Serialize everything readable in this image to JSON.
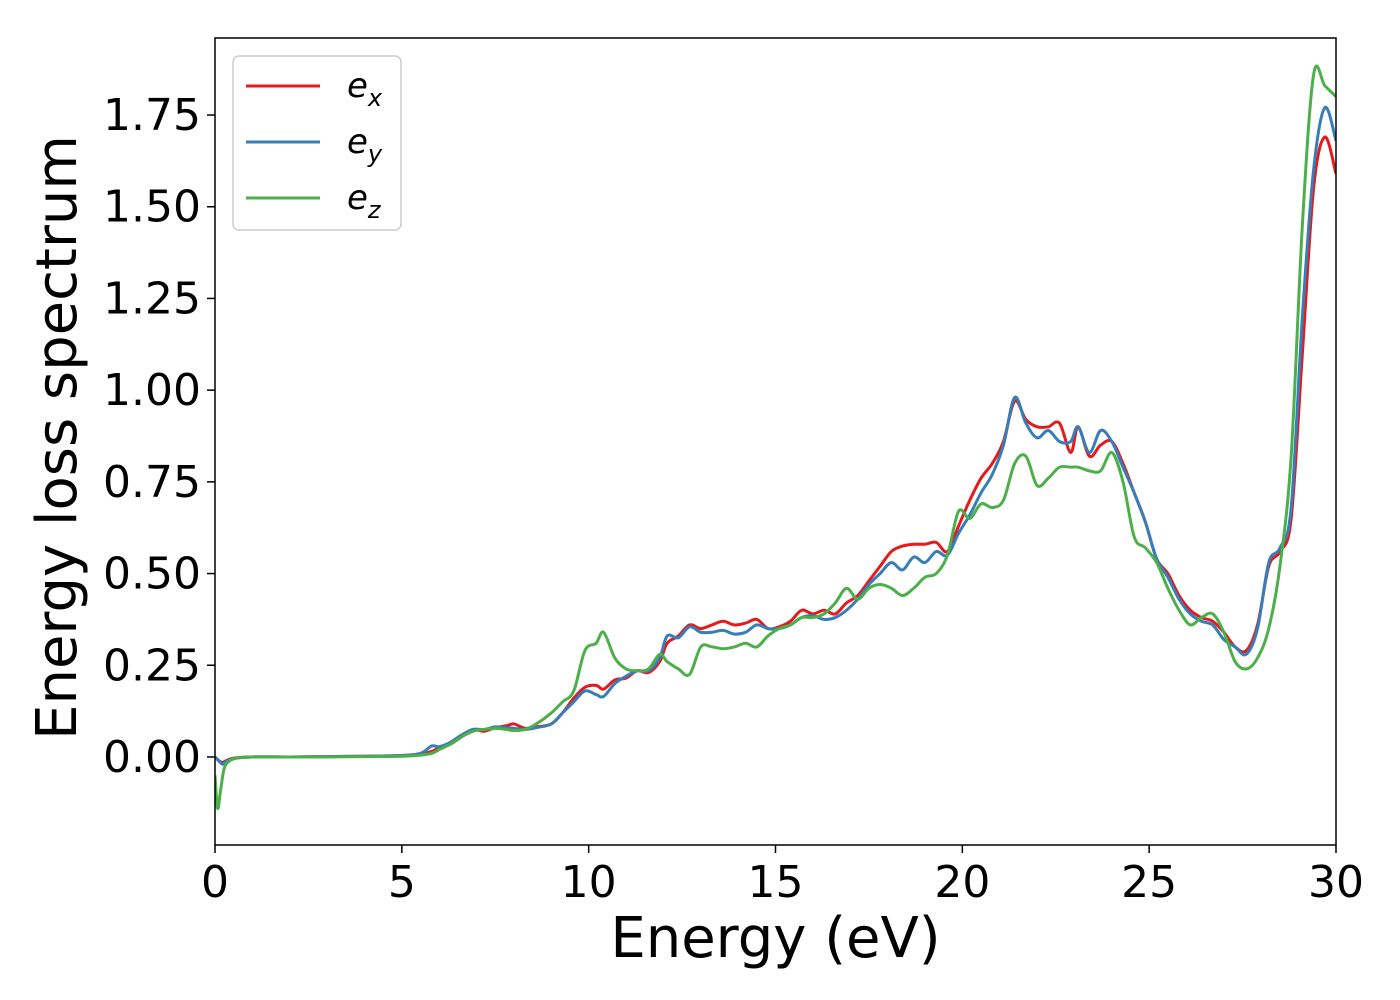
{
  "chart_data": {
    "type": "line",
    "title": "",
    "xlabel": "Energy (eV)",
    "ylabel": "Energy loss spectrum",
    "xlim": [
      0,
      30
    ],
    "ylim": [
      -0.24,
      1.96
    ],
    "xticks": [
      0,
      5,
      10,
      15,
      20,
      25,
      30
    ],
    "xtick_labels": [
      "0",
      "5",
      "10",
      "15",
      "20",
      "25",
      "30"
    ],
    "yticks": [
      0,
      0.25,
      0.5,
      0.75,
      1.0,
      1.25,
      1.5,
      1.75
    ],
    "ytick_labels": [
      "0.00",
      "0.25",
      "0.50",
      "0.75",
      "1.00",
      "1.25",
      "1.50",
      "1.75"
    ],
    "grid": false,
    "legend": {
      "placement": "top-left"
    },
    "series": [
      {
        "name": "e",
        "subscript": "x",
        "color": "#e41a1c",
        "points": [
          [
            0,
            0
          ],
          [
            0.1,
            -0.01
          ],
          [
            0.2,
            -0.015
          ],
          [
            0.3,
            -0.01
          ],
          [
            0.5,
            -0.003
          ],
          [
            1,
            0
          ],
          [
            2,
            0
          ],
          [
            3,
            0.001
          ],
          [
            4,
            0.002
          ],
          [
            5,
            0.004
          ],
          [
            5.5,
            0.008
          ],
          [
            5.8,
            0.015
          ],
          [
            6,
            0.025
          ],
          [
            6.3,
            0.035
          ],
          [
            6.6,
            0.055
          ],
          [
            6.9,
            0.075
          ],
          [
            7.2,
            0.07
          ],
          [
            7.5,
            0.08
          ],
          [
            7.8,
            0.085
          ],
          [
            8,
            0.09
          ],
          [
            8.3,
            0.078
          ],
          [
            8.6,
            0.082
          ],
          [
            9,
            0.09
          ],
          [
            9.3,
            0.12
          ],
          [
            9.6,
            0.16
          ],
          [
            9.9,
            0.19
          ],
          [
            10.2,
            0.195
          ],
          [
            10.4,
            0.185
          ],
          [
            10.7,
            0.21
          ],
          [
            11,
            0.215
          ],
          [
            11.3,
            0.235
          ],
          [
            11.6,
            0.23
          ],
          [
            11.9,
            0.26
          ],
          [
            12.1,
            0.31
          ],
          [
            12.4,
            0.33
          ],
          [
            12.7,
            0.36
          ],
          [
            13,
            0.35
          ],
          [
            13.3,
            0.36
          ],
          [
            13.6,
            0.37
          ],
          [
            13.9,
            0.36
          ],
          [
            14.2,
            0.365
          ],
          [
            14.5,
            0.375
          ],
          [
            14.8,
            0.35
          ],
          [
            15.1,
            0.355
          ],
          [
            15.4,
            0.37
          ],
          [
            15.7,
            0.4
          ],
          [
            16,
            0.39
          ],
          [
            16.3,
            0.4
          ],
          [
            16.6,
            0.39
          ],
          [
            16.9,
            0.42
          ],
          [
            17.2,
            0.44
          ],
          [
            17.5,
            0.48
          ],
          [
            17.8,
            0.52
          ],
          [
            18.1,
            0.56
          ],
          [
            18.4,
            0.575
          ],
          [
            18.7,
            0.58
          ],
          [
            19,
            0.58
          ],
          [
            19.3,
            0.585
          ],
          [
            19.6,
            0.56
          ],
          [
            19.9,
            0.63
          ],
          [
            20.2,
            0.7
          ],
          [
            20.5,
            0.76
          ],
          [
            20.8,
            0.8
          ],
          [
            21.1,
            0.86
          ],
          [
            21.4,
            0.97
          ],
          [
            21.7,
            0.92
          ],
          [
            22,
            0.9
          ],
          [
            22.3,
            0.9
          ],
          [
            22.6,
            0.91
          ],
          [
            22.9,
            0.83
          ],
          [
            23.1,
            0.9
          ],
          [
            23.4,
            0.82
          ],
          [
            23.7,
            0.85
          ],
          [
            24,
            0.86
          ],
          [
            24.3,
            0.8
          ],
          [
            24.6,
            0.72
          ],
          [
            24.9,
            0.64
          ],
          [
            25.2,
            0.54
          ],
          [
            25.5,
            0.5
          ],
          [
            25.8,
            0.44
          ],
          [
            26.1,
            0.4
          ],
          [
            26.4,
            0.38
          ],
          [
            26.7,
            0.37
          ],
          [
            27,
            0.34
          ],
          [
            27.3,
            0.3
          ],
          [
            27.6,
            0.29
          ],
          [
            27.9,
            0.36
          ],
          [
            28.2,
            0.52
          ],
          [
            28.5,
            0.56
          ],
          [
            28.8,
            0.65
          ],
          [
            29.1,
            1.1
          ],
          [
            29.4,
            1.55
          ],
          [
            29.7,
            1.69
          ],
          [
            30,
            1.59
          ]
        ]
      },
      {
        "name": "e",
        "subscript": "y",
        "color": "#377eb8",
        "points": [
          [
            0,
            0
          ],
          [
            0.1,
            -0.01
          ],
          [
            0.2,
            -0.02
          ],
          [
            0.3,
            -0.012
          ],
          [
            0.5,
            -0.004
          ],
          [
            1,
            0
          ],
          [
            2,
            0
          ],
          [
            3,
            0.001
          ],
          [
            4,
            0.002
          ],
          [
            5,
            0.004
          ],
          [
            5.5,
            0.01
          ],
          [
            5.8,
            0.03
          ],
          [
            6,
            0.028
          ],
          [
            6.3,
            0.04
          ],
          [
            6.6,
            0.06
          ],
          [
            6.9,
            0.075
          ],
          [
            7.2,
            0.075
          ],
          [
            7.5,
            0.082
          ],
          [
            7.8,
            0.08
          ],
          [
            8,
            0.078
          ],
          [
            8.3,
            0.075
          ],
          [
            8.6,
            0.08
          ],
          [
            9,
            0.09
          ],
          [
            9.3,
            0.12
          ],
          [
            9.6,
            0.15
          ],
          [
            9.9,
            0.18
          ],
          [
            10.2,
            0.17
          ],
          [
            10.4,
            0.165
          ],
          [
            10.7,
            0.2
          ],
          [
            11,
            0.22
          ],
          [
            11.3,
            0.235
          ],
          [
            11.6,
            0.235
          ],
          [
            11.9,
            0.27
          ],
          [
            12.1,
            0.33
          ],
          [
            12.4,
            0.325
          ],
          [
            12.7,
            0.355
          ],
          [
            13,
            0.34
          ],
          [
            13.3,
            0.34
          ],
          [
            13.6,
            0.345
          ],
          [
            13.9,
            0.335
          ],
          [
            14.2,
            0.34
          ],
          [
            14.5,
            0.36
          ],
          [
            14.8,
            0.35
          ],
          [
            15.1,
            0.35
          ],
          [
            15.4,
            0.36
          ],
          [
            15.7,
            0.38
          ],
          [
            16,
            0.385
          ],
          [
            16.3,
            0.375
          ],
          [
            16.6,
            0.38
          ],
          [
            16.9,
            0.4
          ],
          [
            17.2,
            0.43
          ],
          [
            17.5,
            0.47
          ],
          [
            17.8,
            0.5
          ],
          [
            18.1,
            0.53
          ],
          [
            18.4,
            0.51
          ],
          [
            18.7,
            0.545
          ],
          [
            19,
            0.53
          ],
          [
            19.3,
            0.56
          ],
          [
            19.6,
            0.55
          ],
          [
            19.9,
            0.61
          ],
          [
            20.2,
            0.66
          ],
          [
            20.5,
            0.72
          ],
          [
            20.8,
            0.77
          ],
          [
            21.1,
            0.85
          ],
          [
            21.4,
            0.98
          ],
          [
            21.7,
            0.91
          ],
          [
            22,
            0.87
          ],
          [
            22.3,
            0.89
          ],
          [
            22.6,
            0.86
          ],
          [
            22.9,
            0.86
          ],
          [
            23.1,
            0.9
          ],
          [
            23.4,
            0.83
          ],
          [
            23.7,
            0.89
          ],
          [
            24,
            0.86
          ],
          [
            24.3,
            0.79
          ],
          [
            24.6,
            0.72
          ],
          [
            24.9,
            0.64
          ],
          [
            25.2,
            0.54
          ],
          [
            25.5,
            0.49
          ],
          [
            25.8,
            0.43
          ],
          [
            26.1,
            0.39
          ],
          [
            26.4,
            0.37
          ],
          [
            26.7,
            0.36
          ],
          [
            27,
            0.32
          ],
          [
            27.3,
            0.3
          ],
          [
            27.6,
            0.28
          ],
          [
            27.9,
            0.35
          ],
          [
            28.2,
            0.53
          ],
          [
            28.5,
            0.57
          ],
          [
            28.8,
            0.68
          ],
          [
            29.1,
            1.2
          ],
          [
            29.4,
            1.6
          ],
          [
            29.7,
            1.77
          ],
          [
            30,
            1.68
          ]
        ]
      },
      {
        "name": "e",
        "subscript": "z",
        "color": "#4daf4a",
        "points": [
          [
            0,
            -0.05
          ],
          [
            0.07,
            -0.14
          ],
          [
            0.15,
            -0.09
          ],
          [
            0.25,
            -0.03
          ],
          [
            0.4,
            -0.01
          ],
          [
            0.6,
            -0.003
          ],
          [
            1,
            0
          ],
          [
            2,
            0
          ],
          [
            3,
            0
          ],
          [
            4,
            0.001
          ],
          [
            5,
            0.002
          ],
          [
            5.5,
            0.005
          ],
          [
            5.8,
            0.01
          ],
          [
            6,
            0.02
          ],
          [
            6.3,
            0.035
          ],
          [
            6.6,
            0.055
          ],
          [
            6.9,
            0.07
          ],
          [
            7.2,
            0.075
          ],
          [
            7.5,
            0.078
          ],
          [
            7.8,
            0.075
          ],
          [
            8,
            0.072
          ],
          [
            8.3,
            0.075
          ],
          [
            8.6,
            0.09
          ],
          [
            9,
            0.12
          ],
          [
            9.3,
            0.15
          ],
          [
            9.6,
            0.18
          ],
          [
            9.9,
            0.29
          ],
          [
            10.2,
            0.31
          ],
          [
            10.4,
            0.34
          ],
          [
            10.7,
            0.27
          ],
          [
            11,
            0.24
          ],
          [
            11.3,
            0.235
          ],
          [
            11.6,
            0.24
          ],
          [
            11.9,
            0.28
          ],
          [
            12.1,
            0.26
          ],
          [
            12.4,
            0.24
          ],
          [
            12.7,
            0.225
          ],
          [
            13,
            0.3
          ],
          [
            13.3,
            0.3
          ],
          [
            13.6,
            0.295
          ],
          [
            13.9,
            0.3
          ],
          [
            14.2,
            0.31
          ],
          [
            14.5,
            0.3
          ],
          [
            14.8,
            0.33
          ],
          [
            15.1,
            0.35
          ],
          [
            15.4,
            0.36
          ],
          [
            15.7,
            0.38
          ],
          [
            16,
            0.38
          ],
          [
            16.3,
            0.39
          ],
          [
            16.6,
            0.42
          ],
          [
            16.9,
            0.46
          ],
          [
            17.2,
            0.43
          ],
          [
            17.5,
            0.46
          ],
          [
            17.8,
            0.47
          ],
          [
            18.1,
            0.46
          ],
          [
            18.4,
            0.44
          ],
          [
            18.7,
            0.46
          ],
          [
            19,
            0.49
          ],
          [
            19.3,
            0.5
          ],
          [
            19.6,
            0.55
          ],
          [
            19.9,
            0.67
          ],
          [
            20.2,
            0.65
          ],
          [
            20.5,
            0.69
          ],
          [
            20.8,
            0.68
          ],
          [
            21.1,
            0.7
          ],
          [
            21.4,
            0.8
          ],
          [
            21.7,
            0.82
          ],
          [
            22,
            0.74
          ],
          [
            22.3,
            0.76
          ],
          [
            22.6,
            0.79
          ],
          [
            22.9,
            0.79
          ],
          [
            23.1,
            0.79
          ],
          [
            23.4,
            0.78
          ],
          [
            23.7,
            0.78
          ],
          [
            24,
            0.83
          ],
          [
            24.3,
            0.75
          ],
          [
            24.6,
            0.6
          ],
          [
            24.9,
            0.57
          ],
          [
            25.2,
            0.53
          ],
          [
            25.5,
            0.46
          ],
          [
            25.8,
            0.4
          ],
          [
            26.1,
            0.36
          ],
          [
            26.4,
            0.38
          ],
          [
            26.7,
            0.39
          ],
          [
            27,
            0.34
          ],
          [
            27.3,
            0.26
          ],
          [
            27.6,
            0.24
          ],
          [
            27.9,
            0.27
          ],
          [
            28.2,
            0.35
          ],
          [
            28.5,
            0.52
          ],
          [
            28.8,
            0.82
          ],
          [
            29.1,
            1.45
          ],
          [
            29.4,
            1.86
          ],
          [
            29.7,
            1.83
          ],
          [
            30,
            1.8
          ]
        ]
      }
    ]
  }
}
